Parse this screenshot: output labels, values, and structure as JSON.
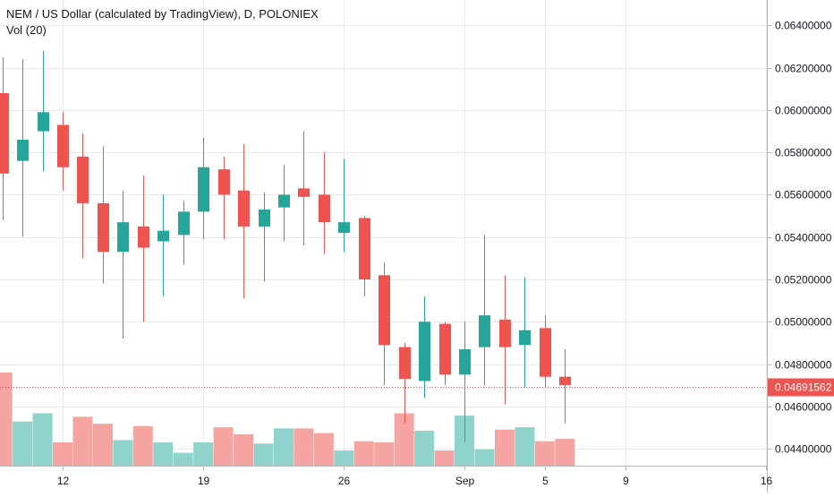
{
  "header": {
    "symbol_title": "NEM / US Dollar (calculated by TradingView), D, POLONIEX",
    "volume_label": "Vol (20)"
  },
  "colors": {
    "up": "#26a69a",
    "down": "#ef5350",
    "up_volume": "#8fd3cc",
    "down_volume": "#f5a4a2",
    "grid": "#e6eaf0",
    "price_line": "#ef5350",
    "text": "#131722"
  },
  "chart_data": {
    "type": "candlestick",
    "title": "NEM / US Dollar (calculated by TradingView), D, POLONIEX",
    "ylim": [
      0.0432,
      0.0652
    ],
    "y_ticks": [
      "0.04400000",
      "0.04600000",
      "0.04800000",
      "0.05000000",
      "0.05200000",
      "0.05400000",
      "0.05600000",
      "0.05800000",
      "0.06000000",
      "0.06200000",
      "0.06400000"
    ],
    "x_ticks": [
      {
        "day": 12,
        "label": "12"
      },
      {
        "day": 19,
        "label": "19"
      },
      {
        "day": 26,
        "label": "26"
      },
      {
        "day": 32,
        "label": "Sep"
      },
      {
        "day": 36,
        "label": "5"
      },
      {
        "day": 40,
        "label": "9"
      },
      {
        "day": 47,
        "label": "16"
      }
    ],
    "last_price": 0.04691562,
    "last_price_label": "0.04691562",
    "volume_ylim": [
      0,
      1
    ],
    "candles": [
      {
        "day": 9,
        "o": 0.0608,
        "h": 0.0625,
        "l": 0.0548,
        "c": 0.057,
        "v": 0.8
      },
      {
        "day": 10,
        "o": 0.0576,
        "h": 0.0624,
        "l": 0.054,
        "c": 0.0586,
        "v": 0.38
      },
      {
        "day": 11,
        "o": 0.059,
        "h": 0.0628,
        "l": 0.0571,
        "c": 0.0599,
        "v": 0.45
      },
      {
        "day": 12,
        "o": 0.0593,
        "h": 0.0599,
        "l": 0.0562,
        "c": 0.0573,
        "v": 0.2
      },
      {
        "day": 13,
        "o": 0.0578,
        "h": 0.0589,
        "l": 0.053,
        "c": 0.0556,
        "v": 0.42
      },
      {
        "day": 14,
        "o": 0.0556,
        "h": 0.0583,
        "l": 0.0518,
        "c": 0.0533,
        "v": 0.36
      },
      {
        "day": 15,
        "o": 0.0533,
        "h": 0.0562,
        "l": 0.0492,
        "c": 0.0547,
        "v": 0.22
      },
      {
        "day": 16,
        "o": 0.0545,
        "h": 0.0569,
        "l": 0.05,
        "c": 0.0535,
        "v": 0.34
      },
      {
        "day": 17,
        "o": 0.0538,
        "h": 0.056,
        "l": 0.0512,
        "c": 0.0543,
        "v": 0.2
      },
      {
        "day": 18,
        "o": 0.0541,
        "h": 0.0557,
        "l": 0.0527,
        "c": 0.0552,
        "v": 0.11
      },
      {
        "day": 19,
        "o": 0.0552,
        "h": 0.0587,
        "l": 0.0539,
        "c": 0.0573,
        "v": 0.2
      },
      {
        "day": 20,
        "o": 0.0572,
        "h": 0.0578,
        "l": 0.0539,
        "c": 0.056,
        "v": 0.33
      },
      {
        "day": 21,
        "o": 0.0562,
        "h": 0.0584,
        "l": 0.0511,
        "c": 0.0545,
        "v": 0.27
      },
      {
        "day": 22,
        "o": 0.0545,
        "h": 0.0561,
        "l": 0.0519,
        "c": 0.0553,
        "v": 0.19
      },
      {
        "day": 23,
        "o": 0.0554,
        "h": 0.0574,
        "l": 0.0538,
        "c": 0.056,
        "v": 0.32
      },
      {
        "day": 24,
        "o": 0.0563,
        "h": 0.059,
        "l": 0.0536,
        "c": 0.0559,
        "v": 0.32
      },
      {
        "day": 25,
        "o": 0.056,
        "h": 0.058,
        "l": 0.0532,
        "c": 0.0547,
        "v": 0.28
      },
      {
        "day": 26,
        "o": 0.0542,
        "h": 0.0577,
        "l": 0.0533,
        "c": 0.0547,
        "v": 0.13
      },
      {
        "day": 27,
        "o": 0.0549,
        "h": 0.055,
        "l": 0.0512,
        "c": 0.052,
        "v": 0.21
      },
      {
        "day": 28,
        "o": 0.0522,
        "h": 0.0528,
        "l": 0.047,
        "c": 0.0489,
        "v": 0.2
      },
      {
        "day": 29,
        "o": 0.0488,
        "h": 0.049,
        "l": 0.0452,
        "c": 0.0473,
        "v": 0.45
      },
      {
        "day": 30,
        "o": 0.0472,
        "h": 0.0512,
        "l": 0.0464,
        "c": 0.05,
        "v": 0.3
      },
      {
        "day": 31,
        "o": 0.0499,
        "h": 0.05,
        "l": 0.047,
        "c": 0.0475,
        "v": 0.13
      },
      {
        "day": 32,
        "o": 0.0475,
        "h": 0.05,
        "l": 0.0443,
        "c": 0.0487,
        "v": 0.43
      },
      {
        "day": 33,
        "o": 0.0488,
        "h": 0.0541,
        "l": 0.047,
        "c": 0.0503,
        "v": 0.14
      },
      {
        "day": 34,
        "o": 0.0501,
        "h": 0.0522,
        "l": 0.0461,
        "c": 0.0488,
        "v": 0.31
      },
      {
        "day": 35,
        "o": 0.0489,
        "h": 0.0521,
        "l": 0.0469,
        "c": 0.0496,
        "v": 0.33
      },
      {
        "day": 36,
        "o": 0.0497,
        "h": 0.0503,
        "l": 0.0469,
        "c": 0.0474,
        "v": 0.21
      },
      {
        "day": 37,
        "o": 0.0474,
        "h": 0.0487,
        "l": 0.0452,
        "c": 0.047,
        "v": 0.23
      }
    ]
  }
}
